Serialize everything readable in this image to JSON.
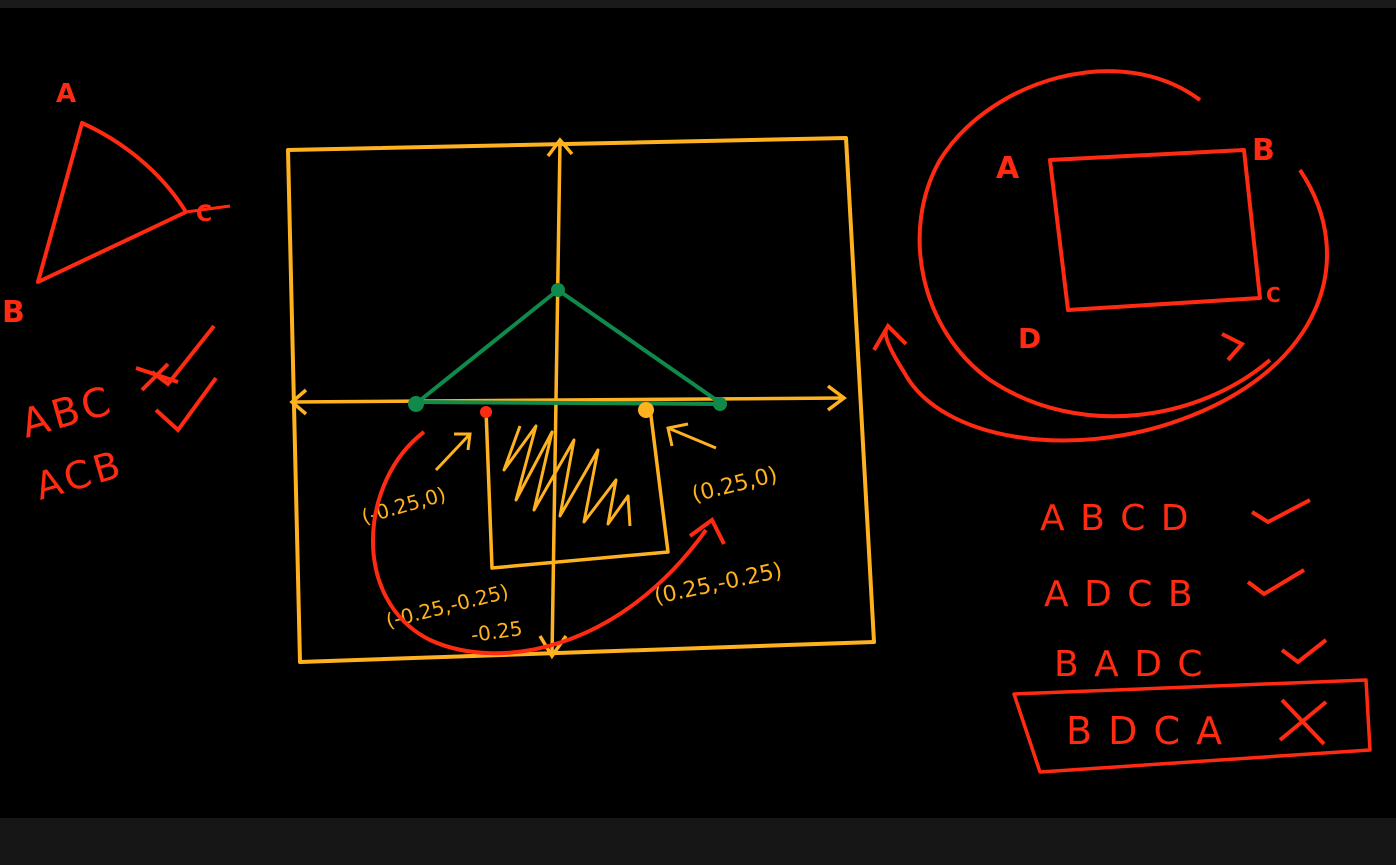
{
  "colors": {
    "red": "#ff2a12",
    "yellow": "#ffb21f",
    "green": "#0f8a4a"
  },
  "triangle_sketch": {
    "label_a": "A",
    "label_b": "B",
    "label_c": "C",
    "order_1": "ABC",
    "order_2": "ACB"
  },
  "grid_plot": {
    "label_left": "(-0.25,0)",
    "label_right": "(0.25,0)",
    "label_bottom_left_1": "(-0.25,-0.25)",
    "label_bottom_left_2": "-0.25",
    "label_bottom_right": "(0.25,-0.25)"
  },
  "rectangle_sketch": {
    "label_a": "A",
    "label_b": "B",
    "label_c": "C",
    "label_d": "D",
    "orders": [
      {
        "text": "A B C D",
        "mark": "check"
      },
      {
        "text": "A D C B",
        "mark": "check"
      },
      {
        "text": "B A D C",
        "mark": "check"
      },
      {
        "text": "B D C A",
        "mark": "cross"
      }
    ]
  }
}
